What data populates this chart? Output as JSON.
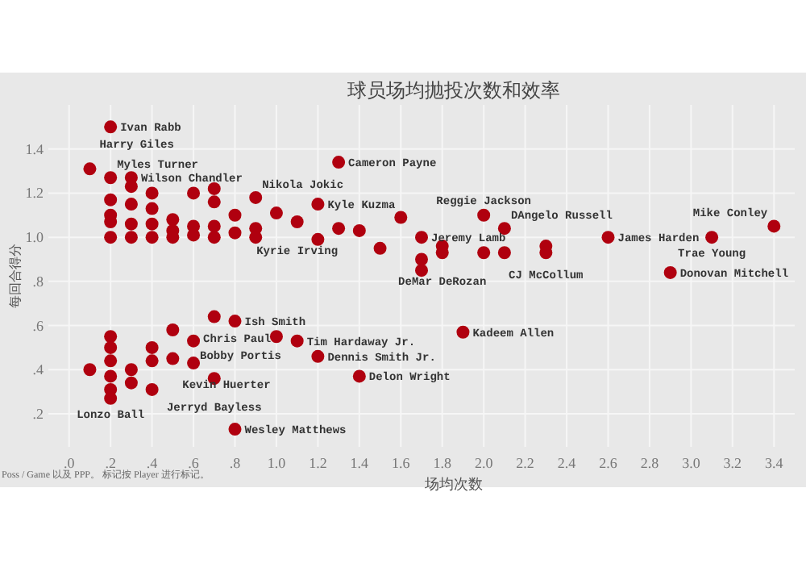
{
  "chart_data": {
    "type": "scatter",
    "title": "球员场均抛投次数和效率",
    "xlabel": "场均次数",
    "ylabel": "每回合得分",
    "x": [
      0.1,
      0.1,
      0.2,
      0.2,
      0.2,
      0.2,
      0.2,
      0.2,
      0.2,
      0.2,
      0.2,
      0.2,
      0.2,
      0.2,
      0.3,
      0.3,
      0.3,
      0.3,
      0.3,
      0.3,
      0.3,
      0.4,
      0.4,
      0.4,
      0.4,
      0.4,
      0.4,
      0.4,
      0.5,
      0.5,
      0.5,
      0.5,
      0.5,
      0.6,
      0.6,
      0.6,
      0.6,
      0.6,
      0.7,
      0.7,
      0.7,
      0.7,
      0.7,
      0.7,
      0.8,
      0.8,
      0.8,
      0.8,
      0.9,
      0.9,
      0.9,
      1.0,
      1.0,
      1.1,
      1.1,
      1.2,
      1.2,
      1.2,
      1.3,
      1.3,
      1.4,
      1.4,
      1.5,
      1.6,
      1.7,
      1.7,
      1.7,
      1.8,
      1.8,
      1.9,
      2.0,
      2.0,
      2.1,
      2.1,
      2.3,
      2.3,
      2.6,
      2.9,
      3.1,
      3.4
    ],
    "series": [
      {
        "color": "#b0000f",
        "values": [
          1.31,
          0.4,
          1.5,
          1.27,
          1.17,
          1.1,
          1.07,
          1.0,
          0.55,
          0.5,
          0.44,
          0.37,
          0.31,
          0.27,
          1.27,
          1.23,
          1.15,
          1.06,
          1.0,
          0.4,
          0.34,
          1.2,
          1.13,
          1.06,
          1.0,
          0.5,
          0.44,
          0.31,
          1.08,
          1.03,
          1.0,
          0.58,
          0.45,
          1.2,
          1.05,
          1.01,
          0.53,
          0.43,
          1.22,
          1.16,
          1.05,
          1.0,
          0.64,
          0.36,
          1.1,
          1.02,
          0.62,
          0.13,
          1.18,
          1.04,
          1.0,
          1.11,
          0.55,
          1.07,
          0.53,
          1.15,
          0.99,
          0.46,
          1.34,
          1.04,
          1.03,
          0.37,
          0.95,
          1.09,
          1.0,
          0.9,
          0.85,
          0.96,
          0.93,
          0.57,
          1.1,
          0.93,
          1.04,
          0.93,
          0.96,
          0.93,
          1.0,
          0.84,
          1.0,
          1.05
        ]
      }
    ],
    "xlim": [
      -0.1,
      3.5
    ],
    "ylim": [
      0.05,
      1.6
    ],
    "xticks": [
      {
        "value": 0,
        "label": ".0"
      },
      {
        "value": 0.2,
        "label": ".2"
      },
      {
        "value": 0.4,
        "label": ".4"
      },
      {
        "value": 0.6,
        "label": ".6"
      },
      {
        "value": 0.8,
        "label": ".8"
      },
      {
        "value": 1,
        "label": "1.0"
      },
      1.2,
      1.4,
      1.6,
      1.8,
      {
        "value": 2,
        "label": "2.0"
      },
      2.2,
      2.4,
      2.6,
      2.8,
      {
        "value": 3,
        "label": "3.0"
      },
      3.2,
      3.4
    ],
    "yticks": [
      {
        "value": 0.2,
        "label": ".2"
      },
      {
        "value": 0.4,
        "label": ".4"
      },
      {
        "value": 0.6,
        "label": ".6"
      },
      {
        "value": 0.8,
        "label": ".8"
      },
      {
        "value": 1,
        "label": "1.0"
      },
      1.2,
      1.4
    ],
    "grid": true,
    "marker": "circle",
    "annotations": [
      {
        "text": "Ivan Rabb",
        "x": 0.2,
        "y": 1.5
      },
      {
        "text": "Myles Turner",
        "x": 0.2,
        "y": 1.27
      },
      {
        "text": "Harry Giles",
        "x": 0.1,
        "y": 1.31
      },
      {
        "text": "Wilson Chandler",
        "x": 0.3,
        "y": 1.27
      },
      {
        "text": "Nikola Jokic",
        "x": 0.9,
        "y": 1.18
      },
      {
        "text": "Cameron Payne",
        "x": 1.3,
        "y": 1.34
      },
      {
        "text": "Kyle Kuzma",
        "x": 1.2,
        "y": 1.15
      },
      {
        "text": "Kyrie Irving",
        "x": 1.1,
        "y": 1.07
      },
      {
        "text": "Reggie Jackson",
        "x": 2.0,
        "y": 1.1
      },
      {
        "text": "DAngelo Russell",
        "x": 2.1,
        "y": 1.04
      },
      {
        "text": "Jeremy Lamb",
        "x": 1.7,
        "y": 1.0
      },
      {
        "text": "CJ McCollum",
        "x": 2.3,
        "y": 0.96
      },
      {
        "text": "James Harden",
        "x": 2.6,
        "y": 1.0
      },
      {
        "text": "Trae Young",
        "x": 3.1,
        "y": 1.0
      },
      {
        "text": "Mike Conley",
        "x": 3.4,
        "y": 1.05
      },
      {
        "text": "DeMar DeRozan",
        "x": 1.8,
        "y": 0.93
      },
      {
        "text": "Donovan Mitchell",
        "x": 2.9,
        "y": 0.84
      },
      {
        "text": "Kadeem Allen",
        "x": 1.9,
        "y": 0.57
      },
      {
        "text": "Ish Smith",
        "x": 0.8,
        "y": 0.62
      },
      {
        "text": "Bobby Portis",
        "x": 0.6,
        "y": 0.53
      },
      {
        "text": "Tim Hardaway Jr.",
        "x": 1.1,
        "y": 0.53
      },
      {
        "text": "Kevin Huerter",
        "x": 0.5,
        "y": 0.45
      },
      {
        "text": "Chris Paul",
        "x": 0.6,
        "y": 0.43
      },
      {
        "text": "Dennis Smith Jr.",
        "x": 1.2,
        "y": 0.46
      },
      {
        "text": "Delon Wright",
        "x": 1.4,
        "y": 0.37
      },
      {
        "text": "Jerryd Bayless",
        "x": 0.7,
        "y": 0.36
      },
      {
        "text": "Lonzo Ball",
        "x": 0.2,
        "y": 0.27
      },
      {
        "text": "Wesley Matthews",
        "x": 0.8,
        "y": 0.13
      },
      "Poss / Game 以及 PPP。 标记按 Player 进行标记。"
    ]
  }
}
